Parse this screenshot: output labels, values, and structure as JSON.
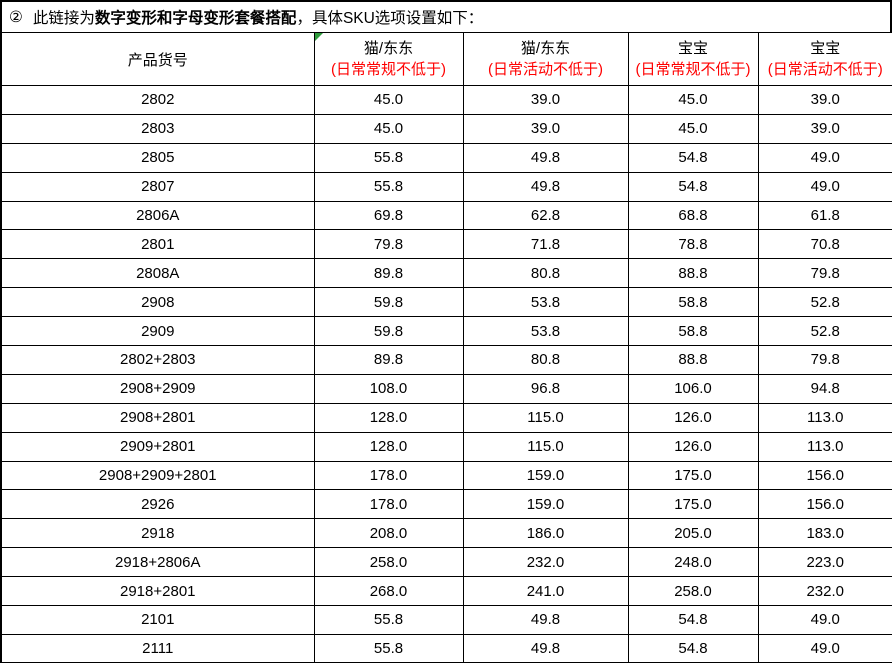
{
  "title": {
    "marker": "②",
    "prefix": "此链接为",
    "bold": "数字变形和字母变形套餐搭配",
    "suffix": "，具体SKU选项设置如下："
  },
  "table": {
    "product_header": "产品货号",
    "columns": [
      {
        "group": "猫/东东",
        "condition": "(日常常规不低于)",
        "has_error_triangle": true
      },
      {
        "group": "猫/东东",
        "condition": "(日常活动不低于)",
        "has_error_triangle": false
      },
      {
        "group": "宝宝",
        "condition": "(日常常规不低于)",
        "has_error_triangle": false
      },
      {
        "group": "宝宝",
        "condition": "(日常活动不低于)",
        "has_error_triangle": false
      }
    ],
    "rows": [
      {
        "sku": "2802",
        "values": [
          "45.0",
          "39.0",
          "45.0",
          "39.0"
        ]
      },
      {
        "sku": "2803",
        "values": [
          "45.0",
          "39.0",
          "45.0",
          "39.0"
        ]
      },
      {
        "sku": "2805",
        "values": [
          "55.8",
          "49.8",
          "54.8",
          "49.0"
        ]
      },
      {
        "sku": "2807",
        "values": [
          "55.8",
          "49.8",
          "54.8",
          "49.0"
        ]
      },
      {
        "sku": "2806A",
        "values": [
          "69.8",
          "62.8",
          "68.8",
          "61.8"
        ]
      },
      {
        "sku": "2801",
        "values": [
          "79.8",
          "71.8",
          "78.8",
          "70.8"
        ]
      },
      {
        "sku": "2808A",
        "values": [
          "89.8",
          "80.8",
          "88.8",
          "79.8"
        ]
      },
      {
        "sku": "2908",
        "values": [
          "59.8",
          "53.8",
          "58.8",
          "52.8"
        ]
      },
      {
        "sku": "2909",
        "values": [
          "59.8",
          "53.8",
          "58.8",
          "52.8"
        ]
      },
      {
        "sku": "2802+2803",
        "values": [
          "89.8",
          "80.8",
          "88.8",
          "79.8"
        ]
      },
      {
        "sku": "2908+2909",
        "values": [
          "108.0",
          "96.8",
          "106.0",
          "94.8"
        ]
      },
      {
        "sku": "2908+2801",
        "values": [
          "128.0",
          "115.0",
          "126.0",
          "113.0"
        ]
      },
      {
        "sku": "2909+2801",
        "values": [
          "128.0",
          "115.0",
          "126.0",
          "113.0"
        ]
      },
      {
        "sku": "2908+2909+2801",
        "values": [
          "178.0",
          "159.0",
          "175.0",
          "156.0"
        ]
      },
      {
        "sku": "2926",
        "values": [
          "178.0",
          "159.0",
          "175.0",
          "156.0"
        ]
      },
      {
        "sku": "2918",
        "values": [
          "208.0",
          "186.0",
          "205.0",
          "183.0"
        ]
      },
      {
        "sku": "2918+2806A",
        "values": [
          "258.0",
          "232.0",
          "248.0",
          "223.0"
        ]
      },
      {
        "sku": "2918+2801",
        "values": [
          "268.0",
          "241.0",
          "258.0",
          "232.0"
        ]
      },
      {
        "sku": "2101",
        "values": [
          "55.8",
          "49.8",
          "54.8",
          "49.0"
        ]
      },
      {
        "sku": "2111",
        "values": [
          "55.8",
          "49.8",
          "54.8",
          "49.0"
        ]
      }
    ]
  },
  "colors": {
    "condition_text": "#FF0000",
    "grid": "#000000",
    "error_triangle": "#2E9B3C",
    "background": "#FFFFFF"
  }
}
